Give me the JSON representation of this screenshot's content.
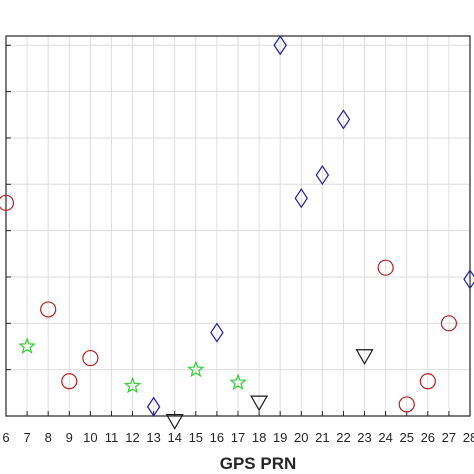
{
  "chart_data": {
    "type": "scatter",
    "title": "",
    "xlabel": "GPS PRN",
    "ylabel": "",
    "grid": true,
    "legend": "none",
    "xlim": [
      6,
      28
    ],
    "ylim": [
      0,
      8.2
    ],
    "x_ticks": [
      6,
      7,
      8,
      9,
      10,
      11,
      12,
      13,
      14,
      15,
      16,
      17,
      18,
      19,
      20,
      21,
      22,
      23,
      24,
      25,
      26,
      27,
      28
    ],
    "x_tick_labels": [
      "6",
      "7",
      "8",
      "9",
      "10",
      "11",
      "12",
      "13",
      "14",
      "15",
      "16",
      "17",
      "18",
      "19",
      "20",
      "21",
      "22",
      "23",
      "24",
      "25",
      "26",
      "27",
      "28"
    ],
    "y_ticks": [
      1,
      2,
      3,
      4,
      5,
      6,
      7,
      8
    ],
    "series": [
      {
        "marker": "circle",
        "color": "#b22222",
        "x": [
          6,
          8,
          9,
          10,
          24,
          25,
          26,
          27
        ],
        "y": [
          4.6,
          2.3,
          0.75,
          1.25,
          3.2,
          0.25,
          0.75,
          2.0
        ]
      },
      {
        "marker": "star",
        "color": "#33cc33",
        "x": [
          7,
          12,
          15,
          17
        ],
        "y": [
          1.5,
          0.65,
          1.0,
          0.72
        ]
      },
      {
        "marker": "diamond",
        "color": "#1f1f9f",
        "x": [
          13,
          16,
          19,
          20,
          21,
          22,
          28
        ],
        "y": [
          0.2,
          1.8,
          8.0,
          4.7,
          5.2,
          6.4,
          2.95
        ]
      },
      {
        "marker": "triangle-down",
        "color": "#1a1a1a",
        "x": [
          14,
          18,
          23
        ],
        "y": [
          -0.1,
          0.3,
          1.3
        ]
      }
    ]
  }
}
